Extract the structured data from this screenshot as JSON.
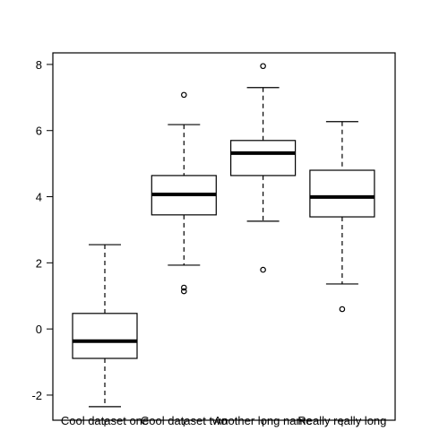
{
  "chart_data": {
    "type": "boxplot",
    "categories": [
      "Cool dataset one",
      "Cool dataset two",
      "Another long name",
      "Really really long"
    ],
    "boxes": [
      {
        "whislo": -2.35,
        "q1": -0.89,
        "med": -0.37,
        "q3": 0.47,
        "whishi": 2.55,
        "fliers": []
      },
      {
        "whislo": 1.93,
        "q1": 3.45,
        "med": 4.07,
        "q3": 4.64,
        "whishi": 6.18,
        "fliers": [
          7.08,
          1.25,
          1.14
        ]
      },
      {
        "whislo": 3.26,
        "q1": 4.64,
        "med": 5.32,
        "q3": 5.7,
        "whishi": 7.3,
        "fliers": [
          7.95,
          1.79
        ]
      },
      {
        "whislo": 1.36,
        "q1": 3.39,
        "med": 3.99,
        "q3": 4.8,
        "whishi": 6.27,
        "fliers": [
          0.6
        ]
      }
    ],
    "color": "#000000",
    "ylim": [
      -2.76,
      8.35
    ],
    "yticks": [
      -2,
      0,
      2,
      4,
      6,
      8
    ]
  }
}
